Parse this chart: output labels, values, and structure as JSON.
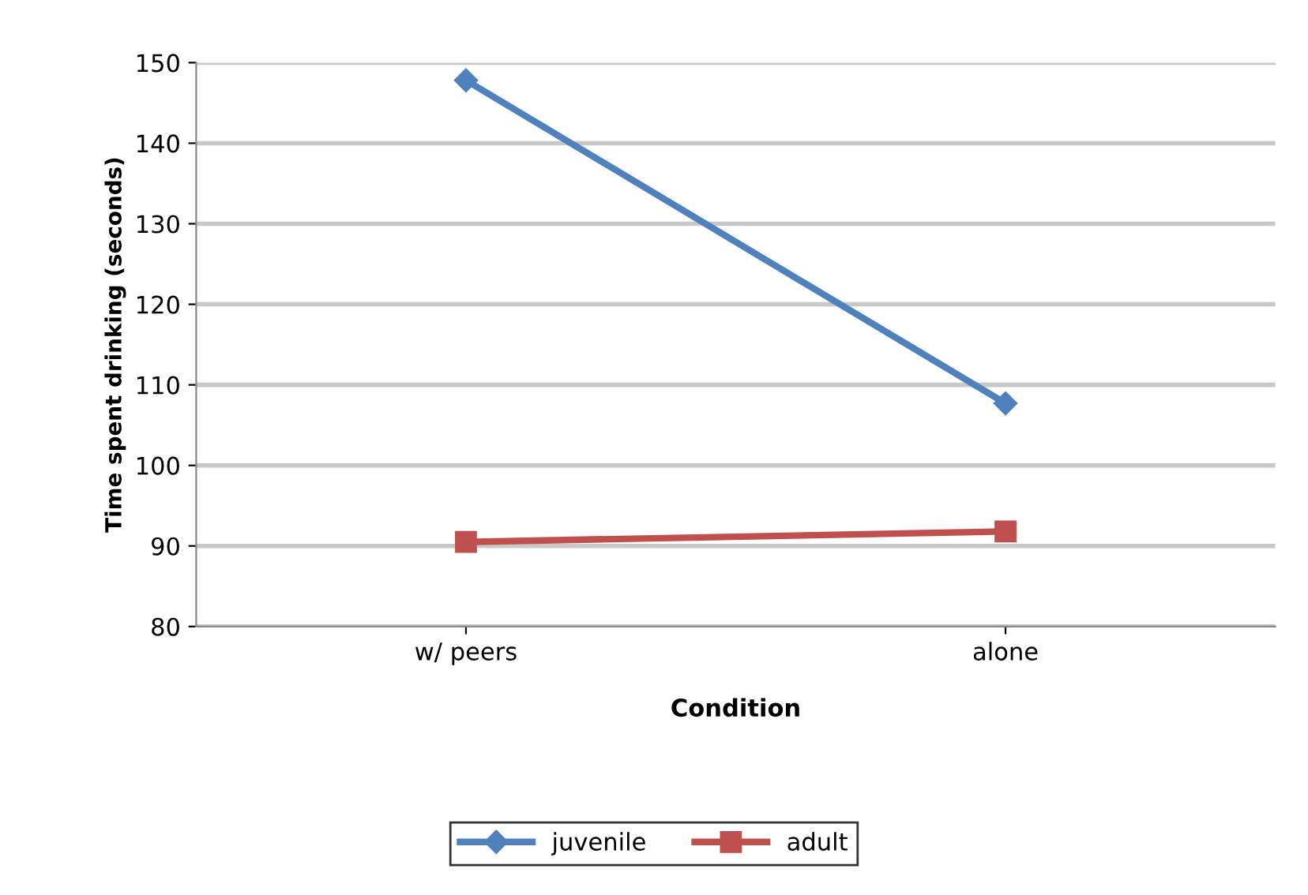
{
  "chart_data": {
    "type": "line",
    "xlabel": "Condition",
    "ylabel": "Time spent drinking (seconds)",
    "categories": [
      "w/ peers",
      "alone"
    ],
    "series": [
      {
        "name": "juvenile",
        "color": "#4f81bd",
        "values": [
          147.8,
          107.7
        ],
        "marker": "diamond"
      },
      {
        "name": "adult",
        "color": "#c0504d",
        "values": [
          90.5,
          91.8
        ],
        "marker": "square"
      }
    ],
    "ylim": [
      80,
      150
    ],
    "yticks": [
      80,
      90,
      100,
      110,
      120,
      130,
      140,
      150
    ],
    "grid": "y",
    "legend": "bottom",
    "line_style": "solid"
  }
}
